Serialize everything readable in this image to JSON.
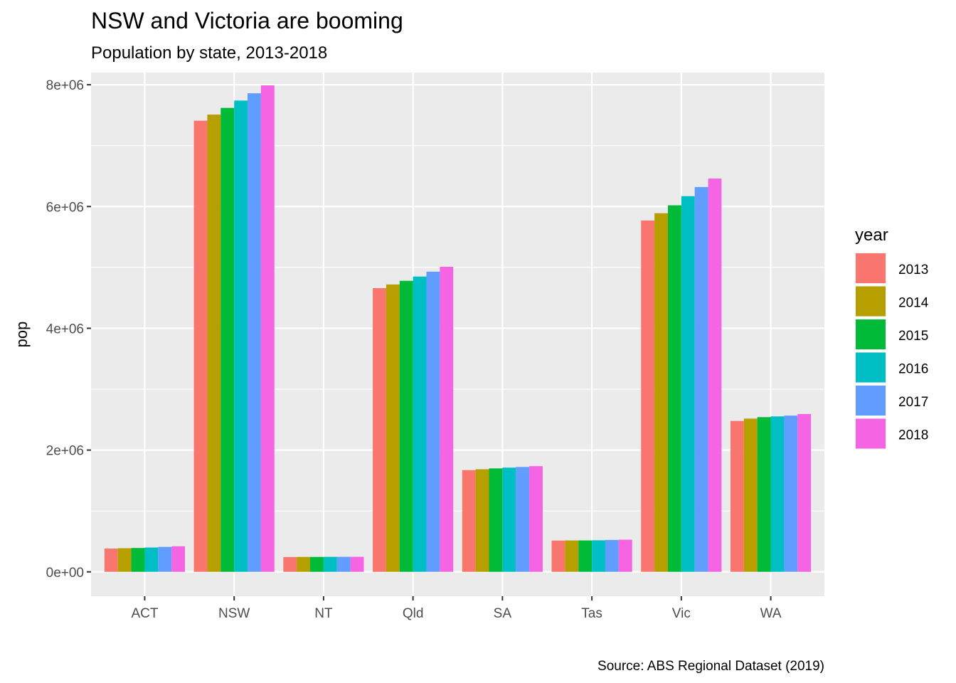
{
  "chart_data": {
    "type": "bar",
    "title": "NSW and Victoria are booming",
    "subtitle": "Population by state, 2013-2018",
    "xlabel": "",
    "ylabel": "pop",
    "caption": "Source: ABS Regional Dataset (2019)",
    "categories": [
      "ACT",
      "NSW",
      "NT",
      "Qld",
      "SA",
      "Tas",
      "Vic",
      "WA"
    ],
    "ylim": [
      -400000,
      8200000
    ],
    "yticks": [
      0,
      2000000,
      4000000,
      6000000,
      8000000
    ],
    "ytick_labels": [
      "0e+00",
      "2e+06",
      "4e+06",
      "6e+06",
      "8e+06"
    ],
    "grid": true,
    "legend": {
      "title": "year",
      "position": "right"
    },
    "series": [
      {
        "name": "2013",
        "color": "#F8766D",
        "values": [
          383000,
          7410000,
          243000,
          4660000,
          1671000,
          514000,
          5770000,
          2479000
        ]
      },
      {
        "name": "2014",
        "color": "#B79F00",
        "values": [
          388000,
          7510000,
          245000,
          4720000,
          1685000,
          516000,
          5890000,
          2517000
        ]
      },
      {
        "name": "2015",
        "color": "#00BA38",
        "values": [
          392000,
          7620000,
          245000,
          4780000,
          1699000,
          516000,
          6020000,
          2541000
        ]
      },
      {
        "name": "2016",
        "color": "#00BFC4",
        "values": [
          400000,
          7740000,
          246000,
          4850000,
          1712000,
          518000,
          6170000,
          2553000
        ]
      },
      {
        "name": "2017",
        "color": "#619CFF",
        "values": [
          410000,
          7860000,
          247000,
          4930000,
          1723000,
          524000,
          6320000,
          2566000
        ]
      },
      {
        "name": "2018",
        "color": "#F564E3",
        "values": [
          420000,
          7990000,
          247000,
          5010000,
          1736000,
          528000,
          6460000,
          2592000
        ]
      }
    ]
  }
}
